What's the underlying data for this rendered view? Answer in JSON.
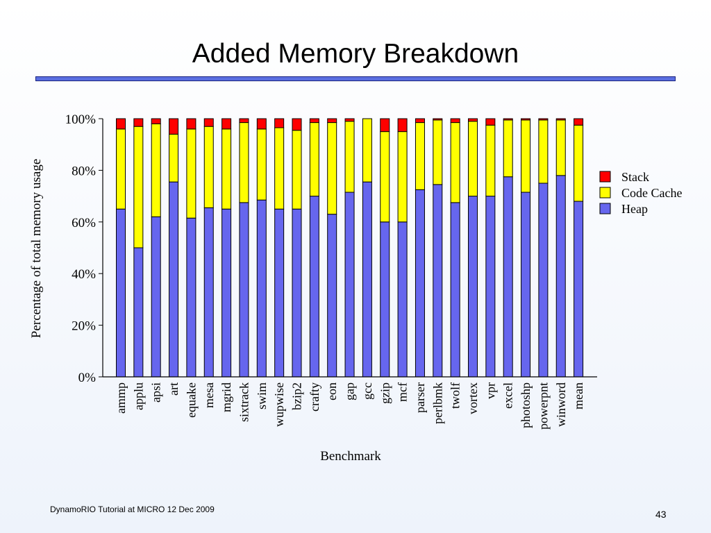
{
  "slide": {
    "title": "Added Memory Breakdown",
    "footer": "DynamoRIO Tutorial at MICRO 12 Dec 2009",
    "page_number": "43"
  },
  "chart_data": {
    "type": "bar",
    "stacked": true,
    "title": "",
    "xlabel": "Benchmark",
    "ylabel": "Percentage of total memory usage",
    "ylim": [
      0,
      100
    ],
    "yticks": [
      "0%",
      "20%",
      "40%",
      "60%",
      "80%",
      "100%"
    ],
    "legend_position": "right",
    "categories": [
      "ammp",
      "applu",
      "apsi",
      "art",
      "equake",
      "mesa",
      "mgrid",
      "sixtrack",
      "swim",
      "wupwise",
      "bzip2",
      "crafty",
      "eon",
      "gap",
      "gcc",
      "gzip",
      "mcf",
      "parser",
      "perlbmk",
      "twolf",
      "vortex",
      "vpr",
      "excel",
      "photoshp",
      "powerpnt",
      "winword",
      "mean"
    ],
    "series": [
      {
        "name": "Heap",
        "color": "#6666ee",
        "values": [
          65,
          50,
          62,
          75.5,
          61.5,
          65.5,
          65,
          67.5,
          68.5,
          65,
          65,
          70,
          63,
          71.5,
          75.5,
          60,
          60,
          72.5,
          74.5,
          67.5,
          70,
          70,
          77.5,
          71.5,
          75,
          78,
          68
        ]
      },
      {
        "name": "Code Cache",
        "color": "#ffff00",
        "values": [
          31,
          47,
          36,
          18.5,
          34.5,
          31.5,
          31,
          31,
          27.5,
          31.5,
          30.5,
          28.5,
          35.5,
          27.5,
          24.5,
          35,
          35,
          26,
          25,
          31,
          29,
          27.5,
          22,
          28,
          24.5,
          21.5,
          29.5
        ]
      },
      {
        "name": "Stack",
        "color": "#ff0000",
        "values": [
          4,
          3,
          2,
          6,
          4,
          3,
          4,
          1.5,
          4,
          3.5,
          4.5,
          1.5,
          1.5,
          1,
          0,
          5,
          5,
          1.5,
          0.5,
          1.5,
          1,
          2.5,
          0.5,
          0.5,
          0.5,
          0.5,
          2.5
        ]
      }
    ],
    "legend_order": [
      "Stack",
      "Code Cache",
      "Heap"
    ]
  }
}
